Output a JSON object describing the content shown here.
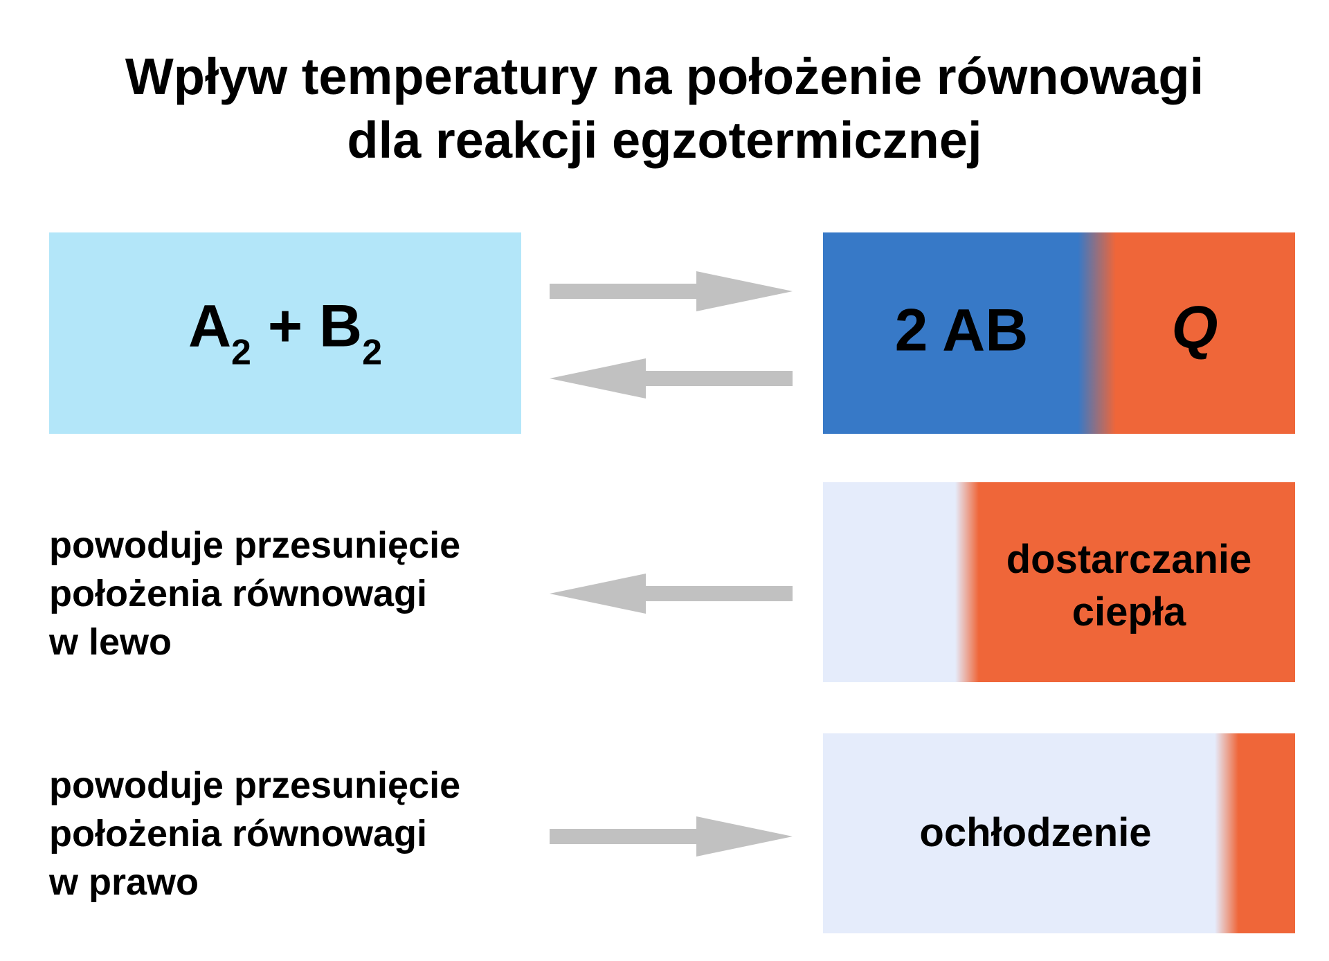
{
  "title": {
    "line1": "Wpływ temperatury na położenie równowagi",
    "line2": "dla reakcji egzotermicznej"
  },
  "reaction": {
    "reactant_a": "A",
    "reactant_a_sub": "2",
    "plus": "+",
    "reactant_b": "B",
    "reactant_b_sub": "2",
    "product": "2 AB",
    "heat": "Q"
  },
  "heating": {
    "box_line1": "dostarczanie",
    "box_line2": "ciepła",
    "effect_line1": "powoduje przesunięcie",
    "effect_line2": "położenia równowagi",
    "effect_line3": "w lewo"
  },
  "cooling": {
    "box_label": "ochłodzenie",
    "effect_line1": "powoduje przesunięcie",
    "effect_line2": "położenia równowagi",
    "effect_line3": "w prawo"
  },
  "colors": {
    "reactant_box": "#b3e6f9",
    "product_blue": "#3779c7",
    "heat_orange": "#ef6639",
    "pale_blue": "#e5ecfb",
    "arrow_gray": "#c1c1c1"
  }
}
